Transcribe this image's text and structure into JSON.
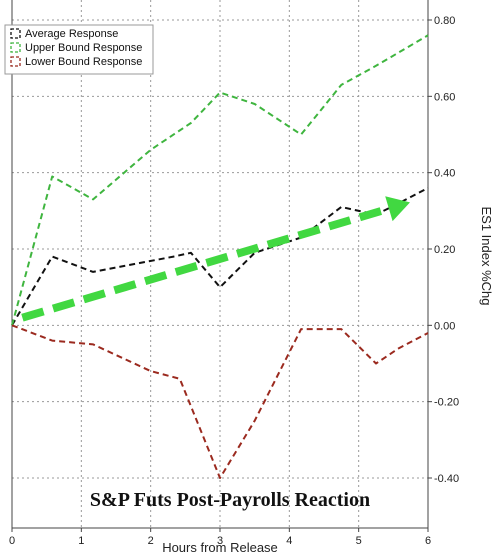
{
  "chart_data": {
    "type": "line",
    "title": "S&P Futs Post-Payrolls Reaction",
    "xlabel": "Hours from Release",
    "ylabel": "ES1 Index %Chg",
    "xlim": [
      0,
      6
    ],
    "ylim": [
      -0.45,
      0.82
    ],
    "x_ticks": [
      "0",
      "1",
      "2",
      "3",
      "4",
      "5",
      "6"
    ],
    "y_ticks": [
      "0.80",
      "0.60",
      "0.40",
      "0.20",
      "0.00",
      "-0.20",
      "-0.40"
    ],
    "grid": true,
    "legend_position": "top-left",
    "series": [
      {
        "name": "Average Response",
        "color": "#111111",
        "x": [
          0,
          0.58,
          1.17,
          2.33,
          2.58,
          3.0,
          3.5,
          4.17,
          4.75,
          5.25,
          5.58,
          6.0
        ],
        "y": [
          0.0,
          0.18,
          0.14,
          0.18,
          0.19,
          0.1,
          0.19,
          0.23,
          0.31,
          0.29,
          0.32,
          0.36
        ]
      },
      {
        "name": "Upper Bound Response",
        "color": "#3fb53f",
        "x": [
          0,
          0.58,
          1.17,
          2.0,
          2.58,
          3.0,
          3.5,
          4.17,
          4.75,
          5.25,
          6.0
        ],
        "y": [
          0.0,
          0.39,
          0.33,
          0.46,
          0.53,
          0.61,
          0.58,
          0.5,
          0.63,
          0.68,
          0.76
        ]
      },
      {
        "name": "Lower Bound Response",
        "color": "#9b2a1f",
        "x": [
          0,
          0.58,
          1.17,
          2.0,
          2.42,
          3.0,
          3.5,
          4.17,
          4.75,
          5.25,
          5.58,
          6.0
        ],
        "y": [
          0.0,
          -0.04,
          -0.05,
          -0.12,
          -0.14,
          -0.4,
          -0.25,
          -0.01,
          -0.01,
          -0.1,
          -0.06,
          -0.02
        ]
      }
    ],
    "annotations": [
      {
        "type": "arrow",
        "color": "#41d841",
        "from": [
          0.15,
          0.02
        ],
        "to": [
          6.0,
          0.33
        ]
      }
    ]
  }
}
